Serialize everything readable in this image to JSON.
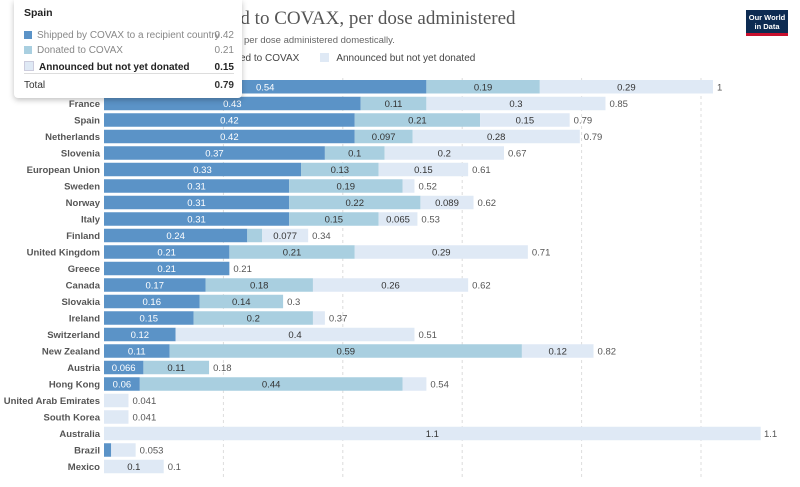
{
  "header": {
    "title": "ed to COVAX, per dose administered",
    "subtitle": "per dose administered domestically.",
    "logo_line1": "Our World",
    "logo_line2": "in Data"
  },
  "legend": {
    "items": [
      {
        "label": "ed to COVAX",
        "color": "#a6cee3"
      },
      {
        "label": "Announced but not yet donated",
        "color": "#dfe9f5"
      }
    ]
  },
  "tooltip": {
    "title": "Spain",
    "rows": [
      {
        "label": "Shipped by COVAX to a recipient country",
        "value": "0.42",
        "color": "#5b93c7"
      },
      {
        "label": "Donated to COVAX",
        "value": "0.21",
        "color": "#a9cfe0"
      },
      {
        "label": "Announced but not yet donated",
        "value": "0.15",
        "color": "#dfe9f5"
      }
    ],
    "total_label": "Total",
    "total_value": "0.79"
  },
  "chart_data": {
    "type": "bar",
    "orientation": "horizontal",
    "stacked": true,
    "grid": true,
    "xlim": [
      0,
      1.1
    ],
    "categories": [
      "France",
      "Spain",
      "Netherlands",
      "Slovenia",
      "European Union",
      "Sweden",
      "Norway",
      "Italy",
      "Finland",
      "United Kingdom",
      "Greece",
      "Canada",
      "Slovakia",
      "Ireland",
      "Switzerland",
      "New Zealand",
      "Austria",
      "Hong Kong",
      "United Arab Emirates",
      "South Korea",
      "Australia",
      "Brazil",
      "Mexico"
    ],
    "series": [
      {
        "name": "Shipped by COVAX to a recipient country",
        "color": "#5b93c7",
        "values": [
          0.43,
          0.42,
          0.42,
          0.37,
          0.33,
          0.31,
          0.31,
          0.31,
          0.24,
          0.21,
          0.21,
          0.17,
          0.16,
          0.15,
          0.12,
          0.11,
          0.066,
          0.06,
          0,
          0,
          0,
          0.012,
          0
        ],
        "labels": [
          "0.43",
          "0.42",
          "0.42",
          "0.37",
          "0.33",
          "0.31",
          "0.31",
          "0.31",
          "0.24",
          "0.21",
          "0.21",
          "0.17",
          "0.16",
          "0.15",
          "0.12",
          "0.11",
          "0.066",
          "0.06",
          "",
          "",
          "",
          "",
          ""
        ]
      },
      {
        "name": "Donated to COVAX",
        "color": "#a9cfe0",
        "values": [
          0.11,
          0.21,
          0.097,
          0.1,
          0.13,
          0.19,
          0.22,
          0.15,
          0.025,
          0.21,
          0,
          0.18,
          0.14,
          0.2,
          0,
          0.59,
          0.11,
          0.44,
          0,
          0,
          0,
          0,
          0
        ],
        "labels": [
          "0.11",
          "0.21",
          "0.097",
          "0.1",
          "0.13",
          "0.19",
          "0.22",
          "0.15",
          "",
          "0.21",
          "",
          "0.18",
          "0.14",
          "0.2",
          "",
          "0.59",
          "0.11",
          "0.44",
          "",
          "",
          "",
          "",
          ""
        ]
      },
      {
        "name": "Announced but not yet donated",
        "color": "#dfe9f5",
        "values": [
          0.3,
          0.15,
          0.28,
          0.2,
          0.15,
          0.02,
          0.089,
          0.065,
          0.077,
          0.29,
          0,
          0.26,
          0,
          0.02,
          0.4,
          0.12,
          0,
          0.04,
          0.041,
          0.041,
          1.1,
          0.041,
          0.1
        ],
        "labels": [
          "0.3",
          "0.15",
          "0.28",
          "0.2",
          "0.15",
          "",
          "0.089",
          "0.065",
          "0.077",
          "0.29",
          "",
          "0.26",
          "",
          "",
          "0.4",
          "0.12",
          "",
          "",
          "",
          "",
          "1.1",
          "",
          "0.1"
        ]
      }
    ],
    "totals": [
      "0.85",
      "0.79",
      "0.79",
      "0.67",
      "0.61",
      "0.52",
      "0.62",
      "0.53",
      "0.34",
      "0.71",
      "0.21",
      "0.62",
      "0.3",
      "0.37",
      "0.51",
      "0.82",
      "0.18",
      "0.54",
      "0.041",
      "0.041",
      "1.1",
      "0.053",
      "0.1"
    ],
    "partial_top_row": {
      "segment_labels": [
        "0.54",
        "0.19",
        "0.29"
      ],
      "total": "1"
    }
  }
}
